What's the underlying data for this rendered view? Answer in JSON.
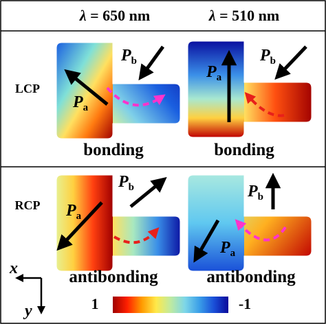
{
  "headers": {
    "col1": {
      "symbol": "λ",
      "text": " = 650 nm"
    },
    "col2": {
      "symbol": "λ",
      "text": " = 510 nm"
    }
  },
  "rows": {
    "lcp": {
      "label": "LCP",
      "mode_650": "bonding",
      "mode_510": "bonding"
    },
    "rcp": {
      "label": "RCP",
      "mode_650": "antibonding",
      "mode_510": "antibonding"
    }
  },
  "dipoles": {
    "a": {
      "main": "P",
      "sub": "a"
    },
    "b": {
      "main": "P",
      "sub": "b"
    }
  },
  "colorbar": {
    "min_label": "1",
    "max_label": "-1",
    "colors": [
      "#a00000",
      "#ff2000",
      "#ff9a00",
      "#ffe94a",
      "#bfeaa0",
      "#7dd6e8",
      "#3a9ee8",
      "#1a4fd8",
      "#0a0a9a"
    ]
  },
  "axes": {
    "x": "x",
    "y": "y"
  },
  "arrow_colors": {
    "magenta": "#ff33cc",
    "red": "#e8201a",
    "dipole": "#000000"
  }
}
